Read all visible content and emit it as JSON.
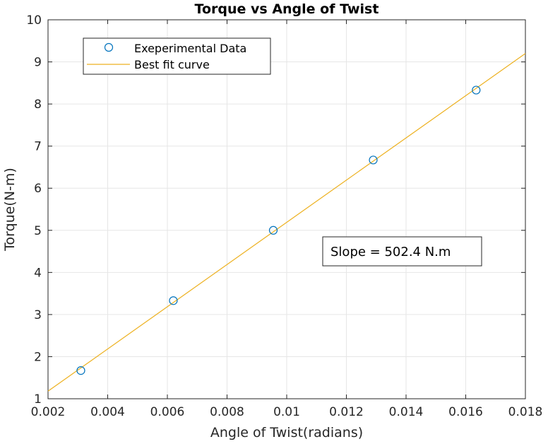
{
  "chart_data": {
    "type": "scatter",
    "title": "Torque vs Angle of Twist",
    "xlabel": "Angle of Twist(radians)",
    "ylabel": "Torque(N-m)",
    "xlim": [
      0.002,
      0.018
    ],
    "ylim": [
      1,
      10
    ],
    "xticks": [
      0.002,
      0.004,
      0.006,
      0.008,
      0.01,
      0.012,
      0.014,
      0.016,
      0.018
    ],
    "xtick_labels": [
      "0.002",
      "0.004",
      "0.006",
      "0.008",
      "0.01",
      "0.012",
      "0.014",
      "0.016",
      "0.018"
    ],
    "yticks": [
      1,
      2,
      3,
      4,
      5,
      6,
      7,
      8,
      9,
      10
    ],
    "ytick_labels": [
      "1",
      "2",
      "3",
      "4",
      "5",
      "6",
      "7",
      "8",
      "9",
      "10"
    ],
    "grid": true,
    "legend_position": "top-left",
    "series": [
      {
        "name": "Exeperimental Data",
        "kind": "markers",
        "marker": "circle",
        "color": "#0072bd",
        "x": [
          0.0031,
          0.0062,
          0.00955,
          0.0129,
          0.01635
        ],
        "y": [
          1.67,
          3.33,
          5.0,
          6.67,
          8.33
        ]
      },
      {
        "name": "Best fit curve",
        "kind": "line",
        "color": "#edb120",
        "x": [
          0.002,
          0.018
        ],
        "y": [
          1.18,
          9.2
        ]
      }
    ],
    "annotation": "Slope = 502.4 N.m"
  }
}
